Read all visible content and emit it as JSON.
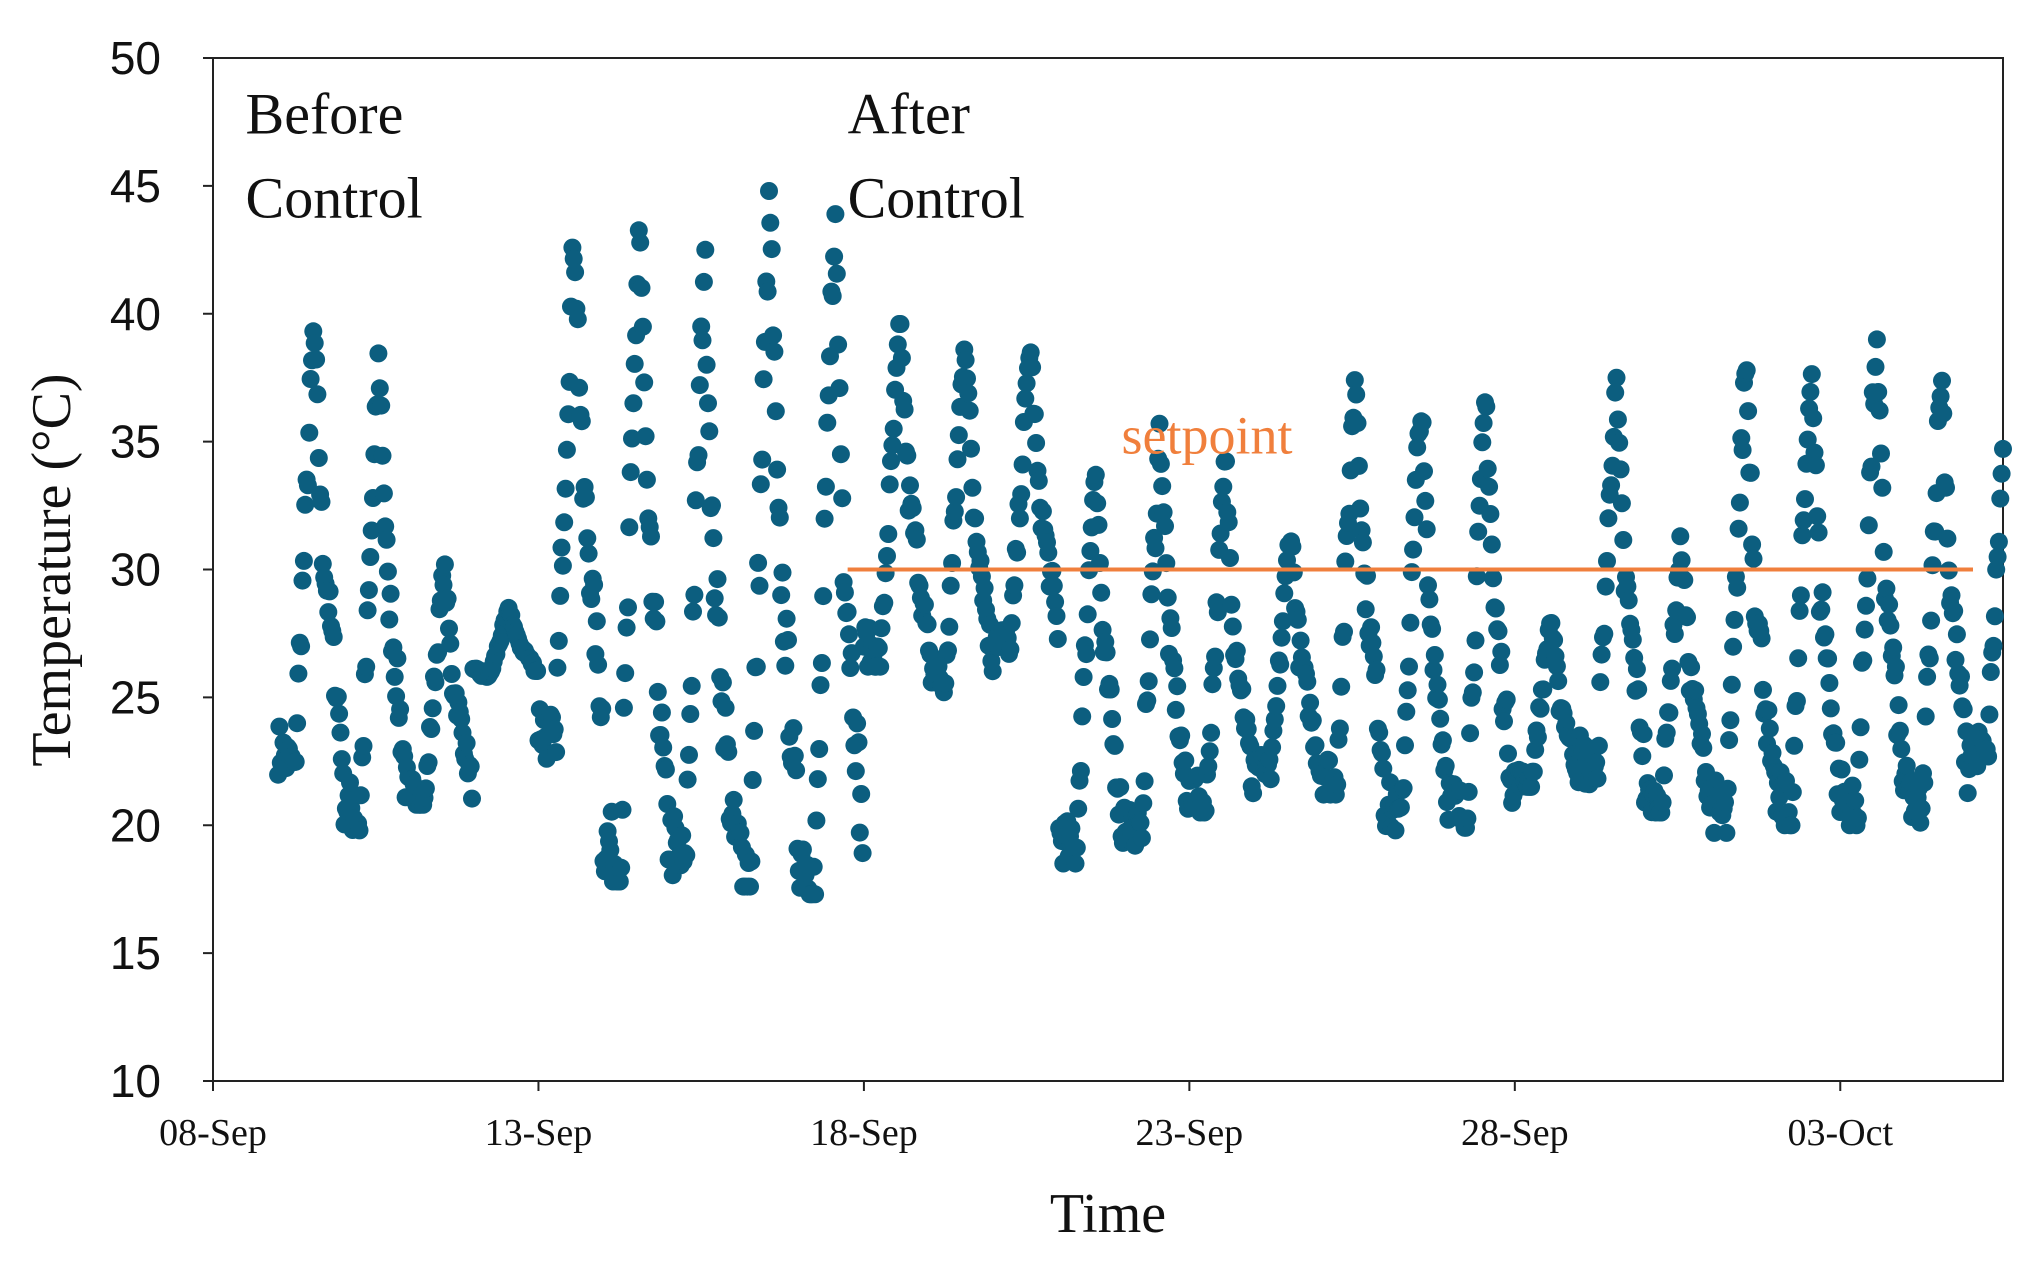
{
  "chart_data": {
    "type": "scatter",
    "title": "",
    "xlabel": "Time",
    "ylabel": "Temperature (°C)",
    "ylim": [
      10,
      50
    ],
    "xlim": [
      "2020-09-08",
      "2020-10-05T12:00"
    ],
    "yticks": [
      "10",
      "15",
      "20",
      "25",
      "30",
      "35",
      "40",
      "45",
      "50"
    ],
    "xticks": [
      {
        "date": "2020-09-08",
        "label": "08-Sep"
      },
      {
        "date": "2020-09-13",
        "label": "13-Sep"
      },
      {
        "date": "2020-09-18",
        "label": "18-Sep"
      },
      {
        "date": "2020-09-23",
        "label": "23-Sep"
      },
      {
        "date": "2020-09-28",
        "label": "28-Sep"
      },
      {
        "date": "2020-10-03",
        "label": "03-Oct"
      }
    ],
    "grid": false,
    "annotations": [
      {
        "text": "Before\nControl",
        "at": [
          "2020-09-08T12:00",
          49
        ]
      },
      {
        "text": "After\nControl",
        "at": [
          "2020-09-17T18:00",
          49
        ]
      },
      {
        "text": "setpoint",
        "at": [
          "2020-09-21T23:00",
          36.5
        ]
      }
    ],
    "setpoint": {
      "value": 30,
      "x_start": "2020-09-17T18:00",
      "x_end": "2020-10-05T12:00",
      "color": "#f07f3c"
    },
    "series": [
      {
        "name": "",
        "color": "#0c5e7f",
        "days": [
          {
            "date": "2020-09-09",
            "min": 21.8,
            "max": 39.5
          },
          {
            "date": "2020-09-10",
            "min": 19.8,
            "max": 38.5
          },
          {
            "date": "2020-09-11",
            "min": 20.8,
            "max": 30.2
          },
          {
            "date": "2020-09-12",
            "min": 25.8,
            "max": 28.5
          },
          {
            "date": "2020-09-13",
            "min": 22.6,
            "max": 43.5
          },
          {
            "date": "2020-09-14",
            "min": 17.8,
            "max": 44.0
          },
          {
            "date": "2020-09-15",
            "min": 17.8,
            "max": 42.5
          },
          {
            "date": "2020-09-16",
            "min": 17.6,
            "max": 44.8
          },
          {
            "date": "2020-09-17",
            "min": 17.3,
            "max": 44.4
          },
          {
            "date": "2020-09-18",
            "min": 26.2,
            "max": 39.6
          },
          {
            "date": "2020-09-19",
            "min": 25.2,
            "max": 39.5
          },
          {
            "date": "2020-09-20",
            "min": 26.7,
            "max": 39.0
          },
          {
            "date": "2020-09-21",
            "min": 18.5,
            "max": 34.7
          },
          {
            "date": "2020-09-22",
            "min": 19.2,
            "max": 35.7
          },
          {
            "date": "2020-09-23",
            "min": 20.5,
            "max": 34.3
          },
          {
            "date": "2020-09-24",
            "min": 21.8,
            "max": 31.8
          },
          {
            "date": "2020-09-25",
            "min": 21.2,
            "max": 38.0
          },
          {
            "date": "2020-09-26",
            "min": 19.8,
            "max": 36.9
          },
          {
            "date": "2020-09-27",
            "min": 19.9,
            "max": 36.9
          },
          {
            "date": "2020-09-28",
            "min": 21.5,
            "max": 28.2
          },
          {
            "date": "2020-09-29",
            "min": 21.6,
            "max": 37.5
          },
          {
            "date": "2020-09-30",
            "min": 20.5,
            "max": 31.3
          },
          {
            "date": "2020-10-01",
            "min": 19.7,
            "max": 38.6
          },
          {
            "date": "2020-10-02",
            "min": 20.0,
            "max": 38.5
          },
          {
            "date": "2020-10-03",
            "min": 20.0,
            "max": 39.0
          },
          {
            "date": "2020-10-04",
            "min": 20.1,
            "max": 38.0
          },
          {
            "date": "2020-10-05",
            "min": 22.3,
            "max": 37.0
          }
        ]
      }
    ]
  }
}
